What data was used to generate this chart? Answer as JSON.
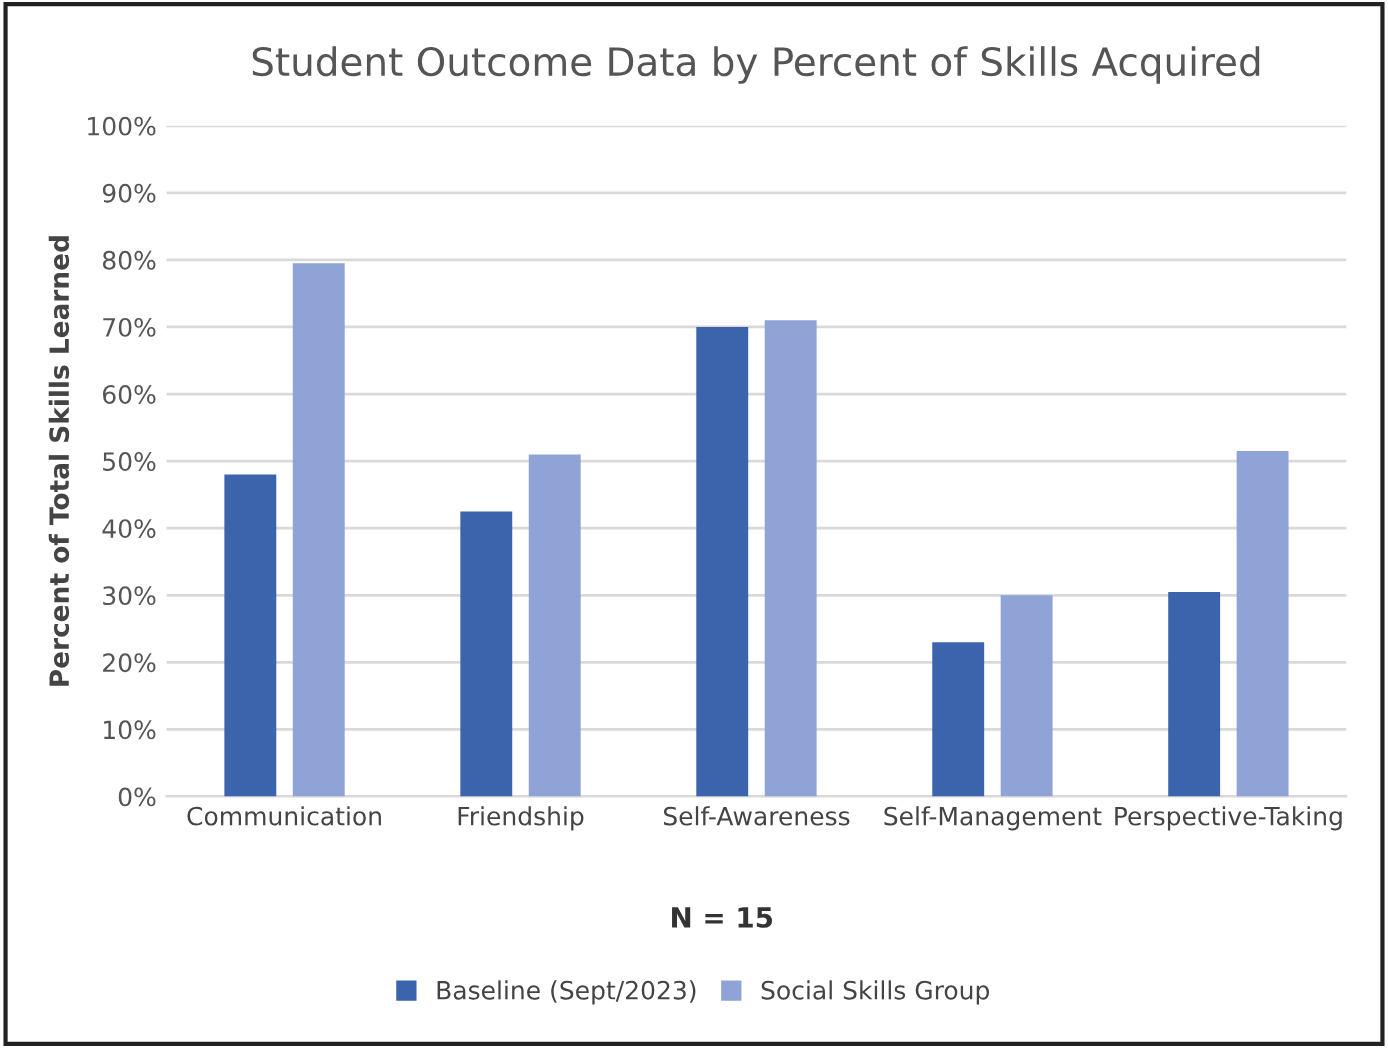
{
  "chart_data": {
    "type": "bar",
    "title": "Student Outcome Data by Percent of Skills Acquired",
    "ylabel": "Percent of Total Skills Learned",
    "categories": [
      "Communication",
      "Friendship",
      "Self-Awareness",
      "Self-Management",
      "Perspective-Taking"
    ],
    "series": [
      {
        "name": "Baseline (Sept/2023)",
        "color": "#3b64ad",
        "values": [
          48,
          42.5,
          70,
          23,
          30.5
        ]
      },
      {
        "name": "Social Skills Group",
        "color": "#8fa3d6",
        "values": [
          79.5,
          51,
          71,
          30,
          51.5
        ]
      }
    ],
    "ylim": [
      0,
      100
    ],
    "yticks": [
      {
        "value": 0,
        "label": "0%"
      },
      {
        "value": 10,
        "label": "10%"
      },
      {
        "value": 20,
        "label": "20%"
      },
      {
        "value": 30,
        "label": "30%"
      },
      {
        "value": 40,
        "label": "40%"
      },
      {
        "value": 50,
        "label": "50%"
      },
      {
        "value": 60,
        "label": "60%"
      },
      {
        "value": 70,
        "label": "70%"
      },
      {
        "value": 80,
        "label": "80%"
      },
      {
        "value": 90,
        "label": "90%"
      },
      {
        "value": 100,
        "label": "100%"
      }
    ],
    "grid": "y",
    "legend": "bottom",
    "annotations": [
      "N = 15"
    ]
  }
}
